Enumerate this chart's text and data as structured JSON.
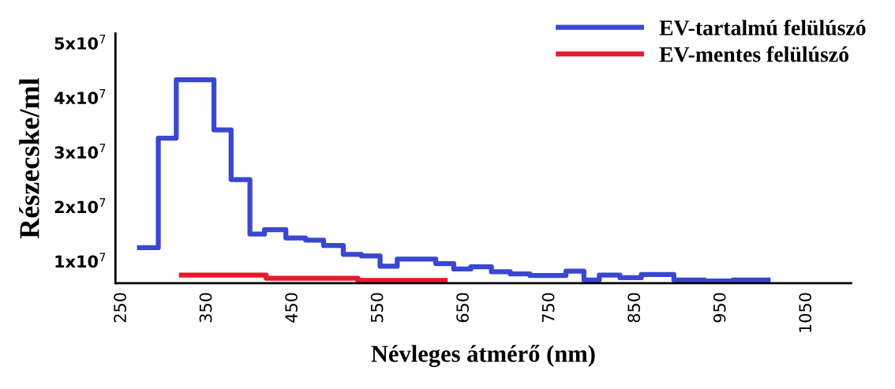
{
  "chart_data": {
    "type": "step",
    "xlabel": "Névleges átmérő (nm)",
    "ylabel": "Részecske/ml",
    "xlim": [
      243,
      1102
    ],
    "xticks": [
      250,
      350,
      450,
      550,
      650,
      750,
      850,
      950,
      1050
    ],
    "ylim": [
      6000000,
      51800000
    ],
    "yticks": [
      {
        "value": 10000000,
        "label": "1x10$^{7}$"
      },
      {
        "value": 20000000,
        "label": "2x10$^{7}$"
      },
      {
        "value": 30000000,
        "label": "3x10$^{7}$"
      },
      {
        "value": 40000000,
        "label": "4x10$^{7}$"
      },
      {
        "value": 50000000,
        "label": "5x10$^{7}$"
      }
    ],
    "grid": false,
    "legend": "top right",
    "line_style": "solid",
    "marker": "none",
    "series": [
      {
        "name": "EV-tartalmú felülúszó",
        "color": "#3a47d0",
        "x": [
          271,
          293,
          314,
          358,
          378,
          400,
          417,
          442,
          465,
          486,
          509,
          530,
          552,
          572,
          617,
          638,
          658,
          682,
          704,
          727,
          769,
          790,
          808,
          832,
          857,
          895,
          931,
          964,
          1005
        ],
        "values": [
          12500000,
          32600000,
          43300000,
          34100000,
          25000000,
          15000000,
          15800000,
          14300000,
          13900000,
          12900000,
          11300000,
          11000000,
          9100000,
          10400000,
          9600000,
          8600000,
          9000000,
          8100000,
          7700000,
          7400000,
          8200000,
          6600000,
          7500000,
          7000000,
          7600000,
          6600000,
          6400000,
          6600000,
          6600000
        ]
      },
      {
        "name": "EV-mentes felülúszó",
        "color": "#e8192c",
        "x": [
          320,
          419,
          526,
          628
        ],
        "values": [
          7500000,
          6900000,
          6500000,
          6500000
        ]
      }
    ]
  }
}
